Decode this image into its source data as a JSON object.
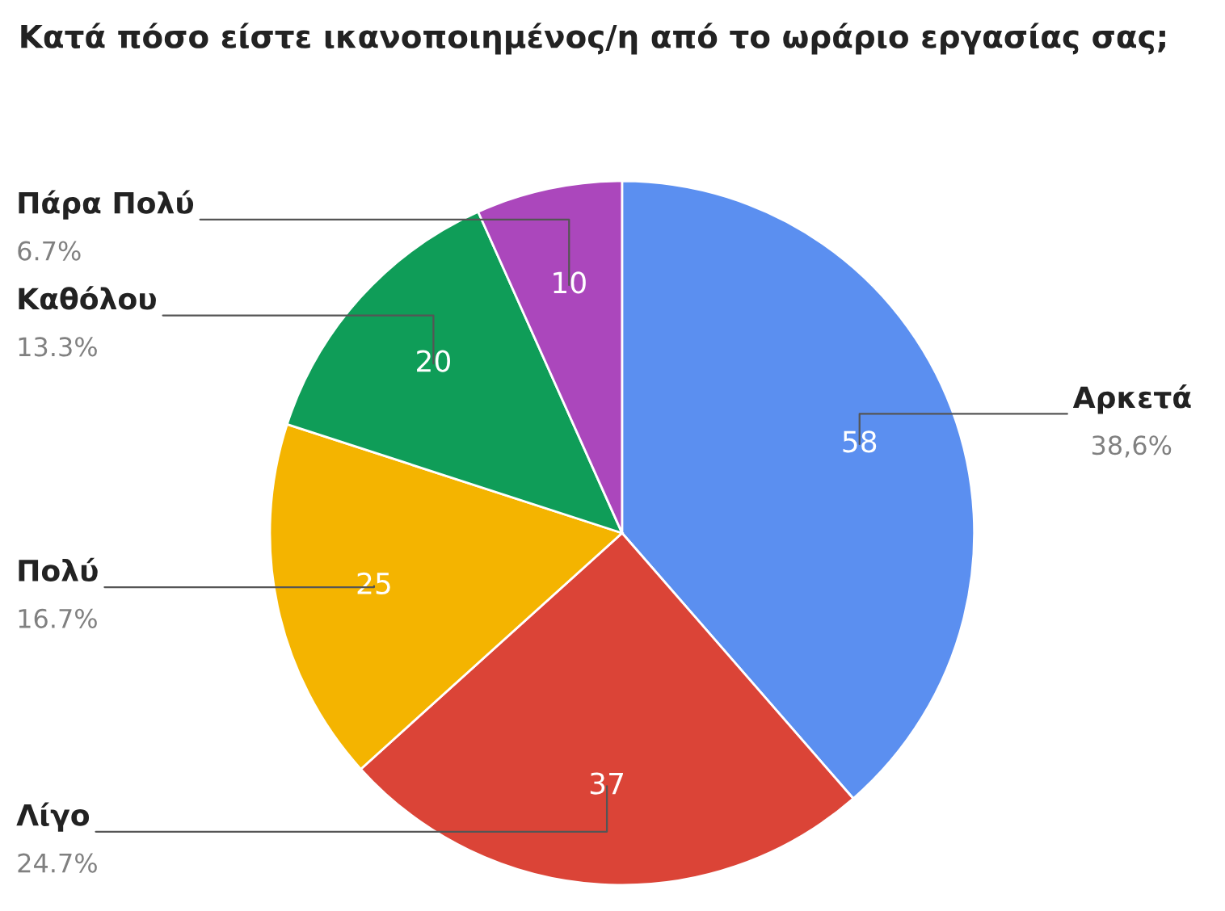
{
  "chart_data": {
    "type": "pie",
    "title": "Κατά πόσο είστε ικανοποιημένος/η από το ωράριο εργασίας σας;",
    "categories": [
      "Αρκετά",
      "Λίγο",
      "Πολύ",
      "Καθόλου",
      "Πάρα Πολύ"
    ],
    "values": [
      38.6,
      24.7,
      16.7,
      13.3,
      6.7
    ],
    "colors": [
      "#5b8ff0",
      "#db4437",
      "#f4b400",
      "#0f9d58",
      "#ab47bc"
    ],
    "value_labels": [
      "38,6%",
      "24.7%",
      "16.7%",
      "13.3%",
      "6.7%"
    ],
    "annotations": [
      {
        "text": "58",
        "x": "Αρκετά"
      },
      {
        "text": "37",
        "x": "Λίγο"
      },
      {
        "text": "25",
        "x": "Πολύ"
      },
      {
        "text": "20",
        "x": "Καθόλου"
      },
      {
        "text": "10",
        "x": "Πάρα Πολύ"
      }
    ]
  }
}
